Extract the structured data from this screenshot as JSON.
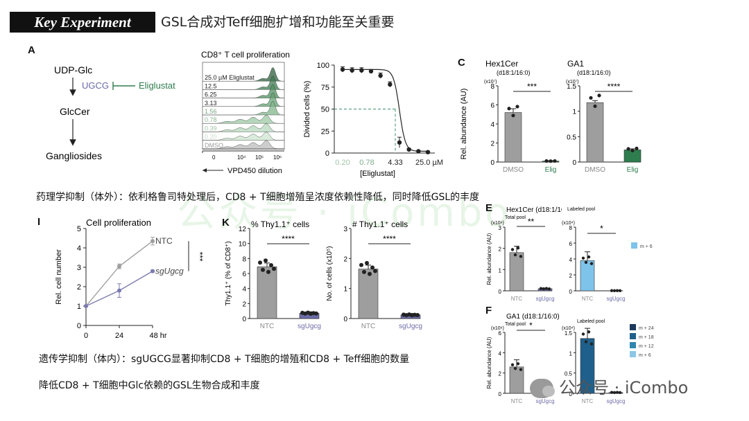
{
  "header": {
    "banner": "Key Experiment",
    "title": "GSL合成对Teff细胞扩增和功能至关重要"
  },
  "watermark": "公众号 · iCombo",
  "wechat": {
    "text": "公众号 · iCombo"
  },
  "captions": [
    "药理学抑制（体外）：依利格鲁司特处理后，CD8 + T细胞增殖呈浓度依赖性降低，同时降低GSL的丰度",
    "遗传学抑制（体内）：sgUGCG显著抑制CD8 + T细胞的增殖和CD8 + Teff细胞的数量",
    "降低CD8 + T细胞中Glc依赖的GSL生物合成和丰度"
  ],
  "panel_labels": {
    "A": "A",
    "C": "C",
    "I": "I",
    "K": "K",
    "E": "E",
    "F": "F"
  },
  "pathway": {
    "n1": "UDP-Glc",
    "enzyme": "UGCG",
    "inhibitor": "Eliglustat",
    "n2": "GlcCer",
    "n3": "Gangliosides"
  },
  "histogram": {
    "title": "CD8⁺ T cell proliferation",
    "rows": [
      "25.0 µM Eliglustat",
      "12.5",
      "6.25",
      "3.13",
      "1.56",
      "0.78",
      "0.39",
      "0.20",
      "DMSO"
    ],
    "x_ticks": [
      "0",
      "10⁴",
      "10⁵",
      "10⁶"
    ],
    "xlabel": "VPD450 dilution"
  },
  "chart_data": [
    {
      "type": "line",
      "id": "dose-response",
      "ylabel": "Divided cells (%)",
      "xlabel": "[Eliglustat]",
      "ylim": [
        0,
        100
      ],
      "y_ticks": [
        0,
        25,
        50,
        75,
        100
      ],
      "x_tick_labels": [
        "0.20",
        "0.78",
        "4.33",
        "25.0 µM"
      ],
      "ic50_label": "4.33",
      "ic50_y": 50,
      "points": [
        95,
        94,
        94,
        93,
        88,
        78,
        12,
        4,
        2,
        1
      ],
      "errors": [
        3,
        3,
        3,
        2,
        3,
        3,
        6,
        1,
        1,
        1
      ]
    },
    {
      "type": "bar",
      "id": "hex1cer-c",
      "title": "Hex1Cer",
      "subtitle": "(d18:1/16:0)",
      "scale": "(x10⁷)",
      "ylabel": "Rel. abundance (AU)",
      "categories": [
        "DMSO",
        "Elig"
      ],
      "values": [
        5.2,
        0.1
      ],
      "errors": [
        0.4,
        0.05
      ],
      "ylim": [
        0,
        8
      ],
      "y_ticks": [
        0,
        2,
        4,
        6,
        8
      ],
      "sig": "***",
      "colors": [
        "#9e9e9e",
        "#2e7d4f"
      ]
    },
    {
      "type": "bar",
      "id": "ga1-c",
      "title": "GA1",
      "subtitle": "(d18:1/16:0)",
      "scale": "(x10⁷)",
      "categories": [
        "DMSO",
        "Elig"
      ],
      "values": [
        1.17,
        0.24
      ],
      "errors": [
        0.04,
        0.02
      ],
      "ylim": [
        0,
        1.5
      ],
      "y_ticks": [
        0.0,
        0.5,
        1.0,
        1.5
      ],
      "sig": "****",
      "colors": [
        "#9e9e9e",
        "#2e7d4f"
      ]
    },
    {
      "type": "line",
      "id": "cell-prolif",
      "title": "Cell proliferation",
      "ylabel": "Rel. cell number",
      "xlabel": "48 hr",
      "x": [
        0,
        24,
        48
      ],
      "x_tick_labels": [
        "0",
        "24",
        "48 hr"
      ],
      "ylim": [
        0,
        5
      ],
      "y_ticks": [
        0,
        1,
        2,
        3,
        4,
        5
      ],
      "series": [
        {
          "name": "NTC",
          "values": [
            1,
            3.05,
            4.35
          ],
          "errors": [
            0,
            0.12,
            0.2
          ],
          "color": "#9e9e9e"
        },
        {
          "name": "sgUgcg",
          "values": [
            1,
            1.8,
            2.8
          ],
          "errors": [
            0,
            0.35,
            0.05
          ],
          "color": "#7b7bb0"
        }
      ],
      "sig": "***"
    },
    {
      "type": "bar",
      "id": "thy-percent",
      "title": "% Thy1.1⁺ cells",
      "ylabel": "Thy1.1⁺ (% of CD8⁺)",
      "categories": [
        "NTC",
        "sgUgcg"
      ],
      "values": [
        6.9,
        0.7
      ],
      "errors": [
        0.5,
        0.2
      ],
      "ylim": [
        0,
        12
      ],
      "y_ticks": [
        0,
        2,
        4,
        6,
        8,
        10,
        12
      ],
      "sig": "****",
      "colors": [
        "#9e9e9e",
        "#6c6ca8"
      ]
    },
    {
      "type": "bar",
      "id": "thy-count",
      "title": "# Thy1.1⁺ cells",
      "ylabel": "No. of cells (x10⁵)",
      "categories": [
        "NTC",
        "sgUgcg"
      ],
      "values": [
        1.65,
        0.12
      ],
      "errors": [
        0.13,
        0.05
      ],
      "ylim": [
        0,
        3.0
      ],
      "y_ticks": [
        0.0,
        1.0,
        2.0,
        3.0
      ],
      "sig": "****",
      "colors": [
        "#9e9e9e",
        "#6c6ca8"
      ]
    },
    {
      "type": "bar",
      "id": "hex1cer-total",
      "title": "Hex1Cer (d18:1/16:0)",
      "subtitle": "Total pool",
      "scale": "(x10⁶)",
      "ylabel": "Rel. abundance (AU)",
      "categories": [
        "NTC",
        "sgUgcg"
      ],
      "values": [
        1.8,
        0.1
      ],
      "errors": [
        0.3,
        0.03
      ],
      "ylim": [
        0,
        3
      ],
      "y_ticks": [
        0,
        1,
        2,
        3
      ],
      "sig": "**",
      "colors": [
        "#9e9e9e",
        "#6c6ca8"
      ]
    },
    {
      "type": "bar",
      "id": "hex1cer-labeled",
      "subtitle": "Labeled pool",
      "scale": "(x10⁴)",
      "categories": [
        "NTC",
        "sgUgcg"
      ],
      "values": [
        3.8,
        0.02
      ],
      "errors": [
        1.1,
        0.01
      ],
      "ylim": [
        0,
        8
      ],
      "y_ticks": [
        0,
        2,
        4,
        6,
        8
      ],
      "sig": "*",
      "colors": [
        "#7ec3ea",
        "#6c6ca8"
      ],
      "legend": [
        {
          "name": "m + 6",
          "color": "#7ec3ea"
        }
      ]
    },
    {
      "type": "bar",
      "id": "ga1-total",
      "title": "GA1 (d18:1/16:0)",
      "subtitle": "Total pool",
      "scale": "(x10⁶)",
      "ylabel": "Rel. abundance (AU)",
      "categories": [
        "NTC",
        "sgUgcg"
      ],
      "values": [
        2.6,
        0.05
      ],
      "errors": [
        0.7,
        0.02
      ],
      "ylim": [
        0,
        6
      ],
      "y_ticks": [
        0,
        2,
        4,
        6
      ],
      "sig": "*",
      "colors": [
        "#9e9e9e",
        "#6c6ca8"
      ]
    },
    {
      "type": "bar",
      "id": "ga1-labeled",
      "subtitle": "Labeled pool",
      "scale": "(x10⁴)",
      "categories": [
        "NTC",
        "sgUgcg"
      ],
      "values": [
        1.35,
        0.02
      ],
      "errors": [
        0.25,
        0.01
      ],
      "ylim": [
        0,
        1.5
      ],
      "y_ticks": [
        0.0,
        0.5,
        1.0,
        1.5
      ],
      "colors": [
        "#1f5f8b",
        "#6c6ca8"
      ],
      "legend": [
        {
          "name": "m + 24",
          "color": "#1b3a5c"
        },
        {
          "name": "m + 18",
          "color": "#1f5f8b"
        },
        {
          "name": "m + 12",
          "color": "#2f86b0"
        },
        {
          "name": "m + 6",
          "color": "#8cc7e6"
        }
      ]
    }
  ]
}
